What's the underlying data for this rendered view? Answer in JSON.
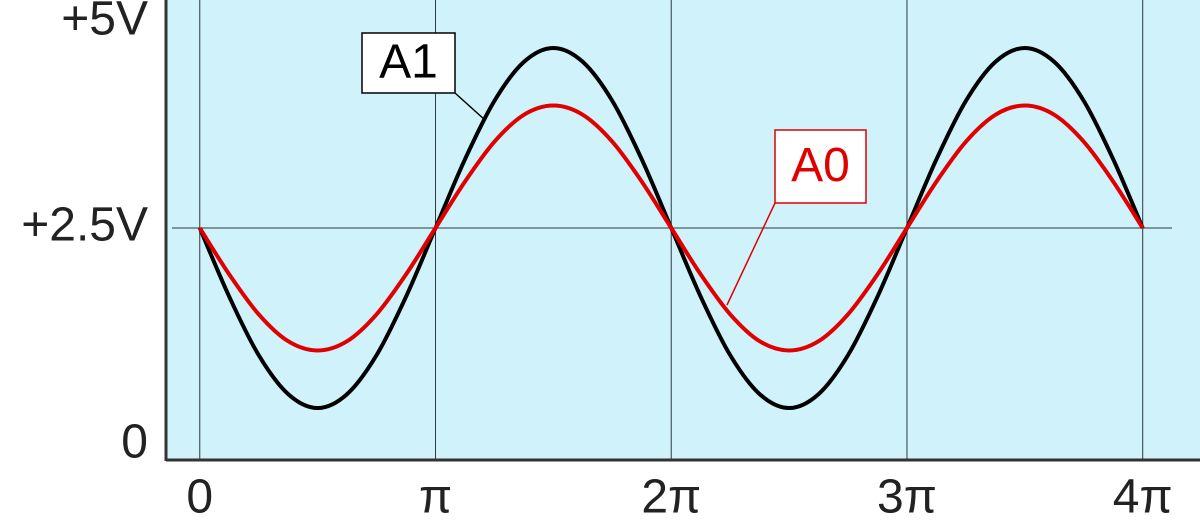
{
  "chart_data": {
    "type": "line",
    "x": [
      0,
      0.3927,
      0.7854,
      1.1781,
      1.5708,
      1.9635,
      2.3562,
      2.7489,
      3.1416,
      3.5343,
      3.927,
      4.3197,
      4.7124,
      5.1051,
      5.4978,
      5.8905,
      6.2832,
      6.6759,
      7.0686,
      7.4613,
      7.854,
      8.2467,
      8.6394,
      9.0321,
      9.4248,
      9.8175,
      10.2102,
      10.6029,
      10.9956,
      11.3883,
      11.781,
      12.1737,
      12.5664
    ],
    "series": [
      {
        "name": "A1",
        "color": "#000000",
        "values": [
          2.5,
          1.76,
          1.13,
          0.71,
          0.56,
          0.71,
          1.13,
          1.76,
          2.5,
          3.24,
          3.87,
          4.29,
          4.44,
          4.29,
          3.87,
          3.24,
          2.5,
          1.76,
          1.13,
          0.71,
          0.56,
          0.71,
          1.13,
          1.76,
          2.5,
          3.24,
          3.87,
          4.29,
          4.44,
          4.29,
          3.87,
          3.24,
          2.5
        ]
      },
      {
        "name": "A0",
        "color": "#e00000",
        "values": [
          2.5,
          2.0,
          1.57,
          1.28,
          1.18,
          1.28,
          1.57,
          2.0,
          2.5,
          3.0,
          3.43,
          3.72,
          3.82,
          3.72,
          3.43,
          3.0,
          2.5,
          2.0,
          1.57,
          1.28,
          1.18,
          1.28,
          1.57,
          2.0,
          2.5,
          3.0,
          3.43,
          3.72,
          3.82,
          3.72,
          3.43,
          3.0,
          2.5
        ]
      }
    ],
    "xlim": [
      -0.45,
      13.33
    ],
    "xticks": [
      0,
      {
        "value": 3.1416,
        "label": "π"
      },
      {
        "value": 6.2832,
        "label": "2π"
      },
      {
        "value": 9.4248,
        "label": "3π"
      },
      {
        "value": 12.5664,
        "label": "4π"
      }
    ],
    "ylim": [
      0,
      5
    ],
    "yticks": [
      0,
      {
        "value": 2.5,
        "label": "+2.5V"
      },
      {
        "value": 5,
        "label": "+5V"
      }
    ],
    "grid": true
  }
}
